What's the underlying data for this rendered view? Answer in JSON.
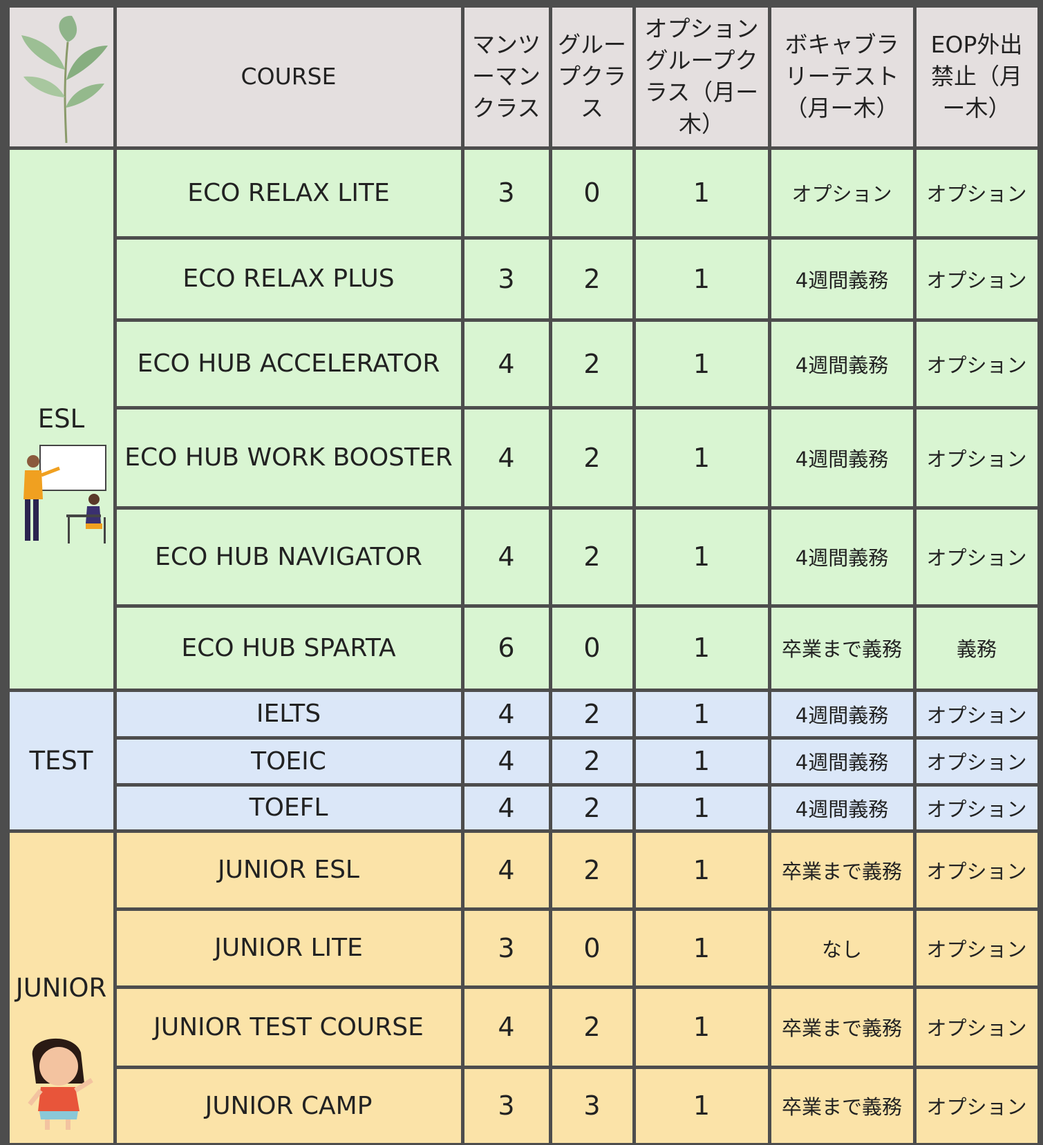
{
  "header": {
    "columns": [
      "COURSE",
      "マンツーマンクラス",
      "グループクラス",
      "オプショングループクラス（月ー木）",
      "ボキャブラリーテスト（月ー木）",
      "EOP外出禁止（月ー木）"
    ]
  },
  "groups": [
    {
      "name": "ESL",
      "rows": [
        [
          "ECO RELAX LITE",
          3,
          0,
          1,
          "オプション",
          "オプション"
        ],
        [
          "ECO RELAX PLUS",
          3,
          2,
          1,
          "4週間義務",
          "オプション"
        ],
        [
          "ECO HUB ACCELERATOR",
          4,
          2,
          1,
          "4週間義務",
          "オプション"
        ],
        [
          "ECO HUB WORK BOOSTER",
          4,
          2,
          1,
          "4週間義務",
          "オプション"
        ],
        [
          "ECO HUB NAVIGATOR",
          4,
          2,
          1,
          "4週間義務",
          "オプション"
        ],
        [
          "ECO HUB SPARTA",
          6,
          0,
          1,
          "卒業まで義務",
          "義務"
        ]
      ]
    },
    {
      "name": "TEST",
      "rows": [
        [
          "IELTS",
          4,
          2,
          1,
          "4週間義務",
          "オプション"
        ],
        [
          "TOEIC",
          4,
          2,
          1,
          "4週間義務",
          "オプション"
        ],
        [
          "TOEFL",
          4,
          2,
          1,
          "4週間義務",
          "オプション"
        ]
      ]
    },
    {
      "name": "JUNIOR",
      "rows": [
        [
          "JUNIOR ESL",
          4,
          2,
          1,
          "卒業まで義務",
          "オプション"
        ],
        [
          "JUNIOR LITE",
          3,
          0,
          1,
          "なし",
          "オプション"
        ],
        [
          "JUNIOR TEST COURSE",
          4,
          2,
          1,
          "卒業まで義務",
          "オプション"
        ],
        [
          "JUNIOR CAMP",
          3,
          3,
          1,
          "卒業まで義務",
          "オプション"
        ]
      ]
    }
  ]
}
